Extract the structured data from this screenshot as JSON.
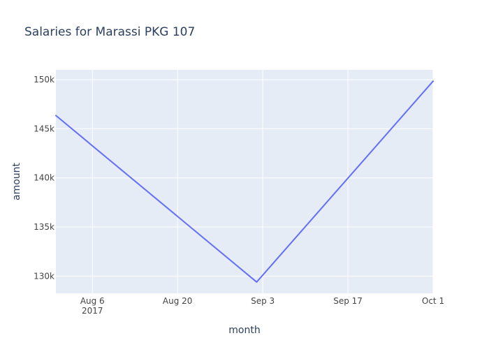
{
  "chart_data": {
    "type": "line",
    "title": "Salaries for Marassi PKG 107",
    "xlabel": "month",
    "ylabel": "amount",
    "x_type": "date",
    "xlim": [
      "2017-07-31",
      "2017-10-01"
    ],
    "ylim": [
      128250,
      151000
    ],
    "x_ticks": [
      {
        "value": "2017-08-06",
        "label": "Aug 6",
        "sublabel": "2017"
      },
      {
        "value": "2017-08-20",
        "label": "Aug 20",
        "sublabel": ""
      },
      {
        "value": "2017-09-03",
        "label": "Sep 3",
        "sublabel": ""
      },
      {
        "value": "2017-09-17",
        "label": "Sep 17",
        "sublabel": ""
      },
      {
        "value": "2017-10-01",
        "label": "Oct 1",
        "sublabel": ""
      }
    ],
    "y_ticks": [
      {
        "value": 130000,
        "label": "130k"
      },
      {
        "value": 135000,
        "label": "135k"
      },
      {
        "value": 140000,
        "label": "140k"
      },
      {
        "value": 145000,
        "label": "145k"
      },
      {
        "value": 150000,
        "label": "150k"
      }
    ],
    "grid": true,
    "series": [
      {
        "name": "",
        "color": "#636efa",
        "x": [
          "2017-07-31",
          "2017-09-02",
          "2017-10-01"
        ],
        "y": [
          146350,
          129400,
          149850
        ]
      }
    ]
  },
  "colors": {
    "plot_background": "#e5ecf6",
    "grid": "#ffffff",
    "text": "#2a3f5f",
    "tick_text": "#444444"
  }
}
